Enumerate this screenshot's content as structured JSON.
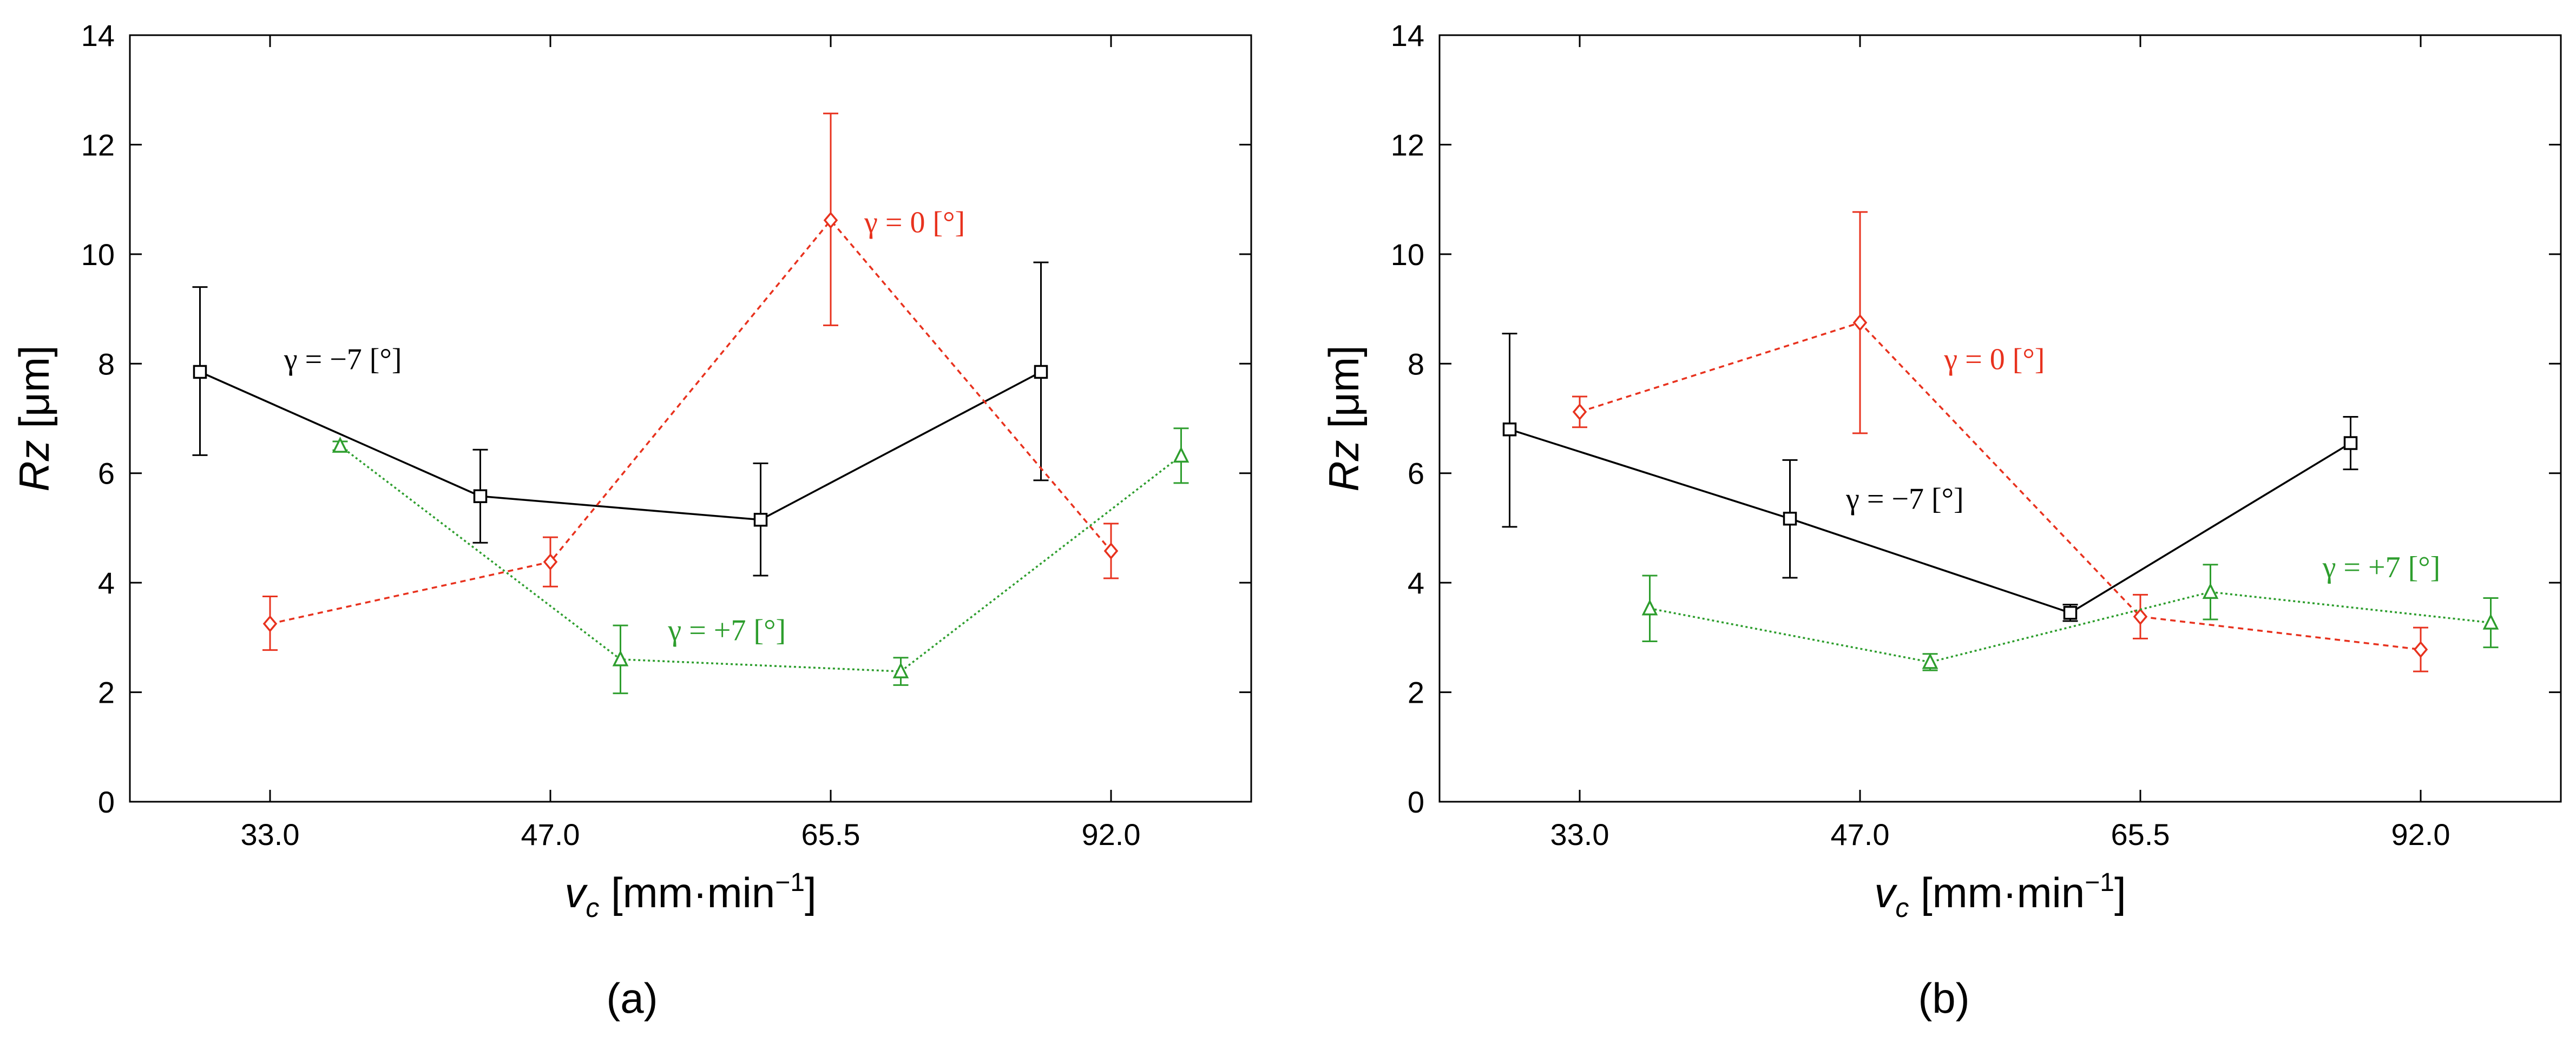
{
  "chart_data": [
    {
      "panel_label": "(a)",
      "type": "line",
      "xlabel": "v",
      "xlabel_sub": "c",
      "xlabel_units": " [mm·min",
      "xlabel_sup": "−1",
      "xlabel_close": "]",
      "ylabel": "Rz",
      "ylabel_units": " [μm]",
      "ylim": [
        0,
        14
      ],
      "yticks": [
        "0",
        "2",
        "4",
        "6",
        "8",
        "10",
        "12",
        "14"
      ],
      "categories": [
        "33.0",
        "47.0",
        "65.5",
        "92.0"
      ],
      "series": [
        {
          "name": "γ = −7 [°]",
          "color": "#000000",
          "marker": "square",
          "dash": "solid",
          "x": [
            0.75,
            1.75,
            2.75,
            3.75
          ],
          "values": [
            7.85,
            5.58,
            5.15,
            7.85
          ],
          "err_low": [
            1.52,
            0.85,
            1.02,
            1.98
          ],
          "err_high": [
            1.55,
            0.85,
            1.03,
            2.0
          ]
        },
        {
          "name": "γ = 0 [°]",
          "color": "#e8321e",
          "marker": "diamond",
          "dash": "dashed",
          "x": [
            1.0,
            2.0,
            3.0,
            4.0
          ],
          "values": [
            3.25,
            4.38,
            10.62,
            4.58
          ],
          "err_low": [
            0.48,
            0.45,
            1.92,
            0.5
          ],
          "err_high": [
            0.5,
            0.45,
            1.95,
            0.5
          ]
        },
        {
          "name": "γ = +7 [°]",
          "color": "#2e9e2e",
          "marker": "triangle",
          "dash": "dotted",
          "x": [
            1.25,
            2.25,
            3.25,
            4.25
          ],
          "values": [
            6.5,
            2.6,
            2.38,
            6.32
          ],
          "err_low": [
            0.08,
            0.62,
            0.25,
            0.5
          ],
          "err_high": [
            0.08,
            0.62,
            0.25,
            0.5
          ]
        }
      ],
      "annotations": [
        {
          "text": "γ = −7 [°]",
          "series": 0,
          "x": 1.05,
          "y": 7.9
        },
        {
          "text": "γ = 0 [°]",
          "series": 1,
          "x": 3.12,
          "y": 10.4
        },
        {
          "text": "γ = +7 [°]",
          "series": 2,
          "x": 2.42,
          "y": 2.95
        }
      ]
    },
    {
      "panel_label": "(b)",
      "type": "line",
      "xlabel": "v",
      "xlabel_sub": "c",
      "xlabel_units": " [mm·min",
      "xlabel_sup": "−1",
      "xlabel_close": "]",
      "ylabel": "Rz",
      "ylabel_units": " [μm]",
      "ylim": [
        0,
        14
      ],
      "yticks": [
        "0",
        "2",
        "4",
        "6",
        "8",
        "10",
        "12",
        "14"
      ],
      "categories": [
        "33.0",
        "47.0",
        "65.5",
        "92.0"
      ],
      "series": [
        {
          "name": "γ = −7 [°]",
          "color": "#000000",
          "marker": "square",
          "dash": "solid",
          "x": [
            0.75,
            1.75,
            2.75,
            3.75
          ],
          "values": [
            6.8,
            5.17,
            3.45,
            6.55
          ],
          "err_low": [
            1.78,
            1.08,
            0.15,
            0.48
          ],
          "err_high": [
            1.75,
            1.07,
            0.15,
            0.48
          ]
        },
        {
          "name": "γ = 0 [°]",
          "color": "#e8321e",
          "marker": "diamond",
          "dash": "dashed",
          "x": [
            1.0,
            2.0,
            3.0,
            4.0
          ],
          "values": [
            7.12,
            8.75,
            3.38,
            2.78
          ],
          "err_low": [
            0.28,
            2.02,
            0.4,
            0.4
          ],
          "err_high": [
            0.28,
            2.02,
            0.4,
            0.4
          ]
        },
        {
          "name": "γ = +7 [°]",
          "color": "#2e9e2e",
          "marker": "triangle",
          "dash": "dotted",
          "x": [
            1.25,
            2.25,
            3.25,
            4.25
          ],
          "values": [
            3.53,
            2.55,
            3.83,
            3.27
          ],
          "err_low": [
            0.6,
            0.15,
            0.5,
            0.45
          ],
          "err_high": [
            0.6,
            0.15,
            0.5,
            0.45
          ]
        }
      ],
      "annotations": [
        {
          "text": "γ = −7 [°]",
          "series": 0,
          "x": 1.95,
          "y": 5.35
        },
        {
          "text": "γ = 0 [°]",
          "series": 1,
          "x": 2.3,
          "y": 7.9
        },
        {
          "text": "γ = +7 [°]",
          "series": 2,
          "x": 3.65,
          "y": 4.1
        }
      ]
    }
  ]
}
